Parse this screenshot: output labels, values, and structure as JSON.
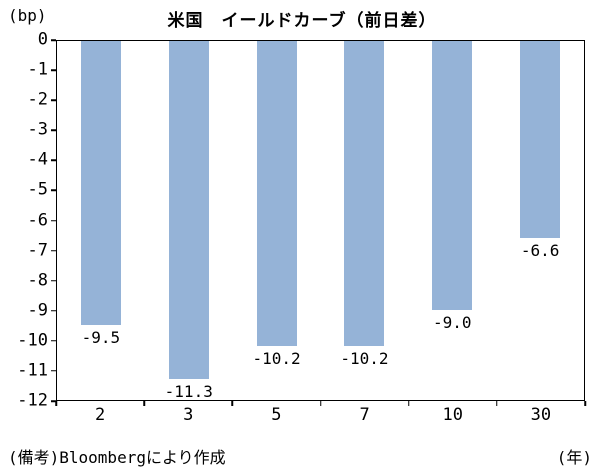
{
  "header": {
    "y_unit": "(bp)",
    "title": "米国　イールドカーブ（前日差）"
  },
  "footer": {
    "source_note": "(備考)Bloombergにより作成",
    "x_unit": "(年)"
  },
  "chart_data": {
    "type": "bar",
    "title": "米国　イールドカーブ（前日差）",
    "categories": [
      "2",
      "3",
      "5",
      "7",
      "10",
      "30"
    ],
    "values": [
      -9.5,
      -11.3,
      -10.2,
      -10.2,
      -9.0,
      -6.6
    ],
    "value_labels": [
      "-9.5",
      "-11.3",
      "-10.2",
      "-10.2",
      "-9.0",
      "-6.6"
    ],
    "ylabel": "(bp)",
    "xlabel": "(年)",
    "ylim": [
      -12,
      0
    ],
    "ytick_step": 1,
    "grid": false,
    "legend": "none",
    "bar_color": "#95B3D7",
    "source_note": "(備考)Bloombergにより作成"
  }
}
